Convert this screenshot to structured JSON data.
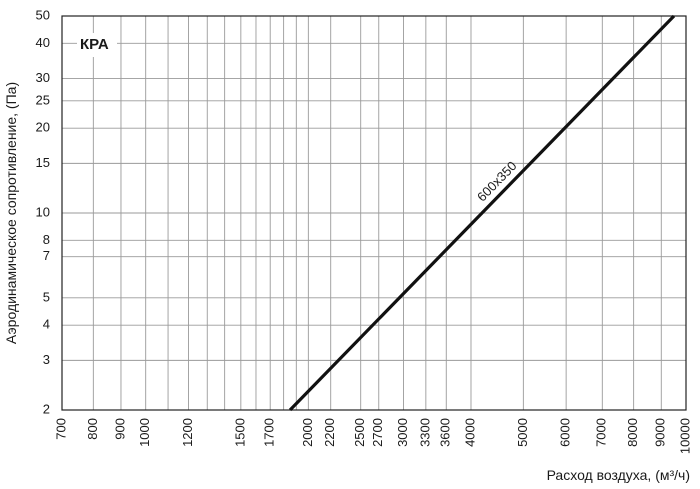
{
  "chart_data": {
    "type": "line",
    "title": "КРА",
    "xlabel": "Расход воздуха, (м³/ч)",
    "ylabel": "Аэродинамическое сопротивление, (Па)",
    "x_scale": "log",
    "y_scale": "log",
    "xlim": [
      700,
      10000
    ],
    "ylim": [
      2,
      50
    ],
    "grid": true,
    "x_ticks": [
      700,
      800,
      900,
      1000,
      1200,
      1500,
      1700,
      2000,
      2200,
      2500,
      2700,
      3000,
      3300,
      3600,
      4000,
      5000,
      6000,
      7000,
      8000,
      9000,
      10000
    ],
    "x_minor_grid": [
      1100,
      1300,
      1400,
      1600,
      1800,
      1900
    ],
    "y_ticks": [
      2,
      3,
      4,
      5,
      7,
      8,
      10,
      15,
      20,
      25,
      30,
      40,
      50
    ],
    "series": [
      {
        "name": "600x350",
        "color": "#111111",
        "x": [
          1850,
          9500
        ],
        "y": [
          2,
          50
        ]
      }
    ]
  }
}
